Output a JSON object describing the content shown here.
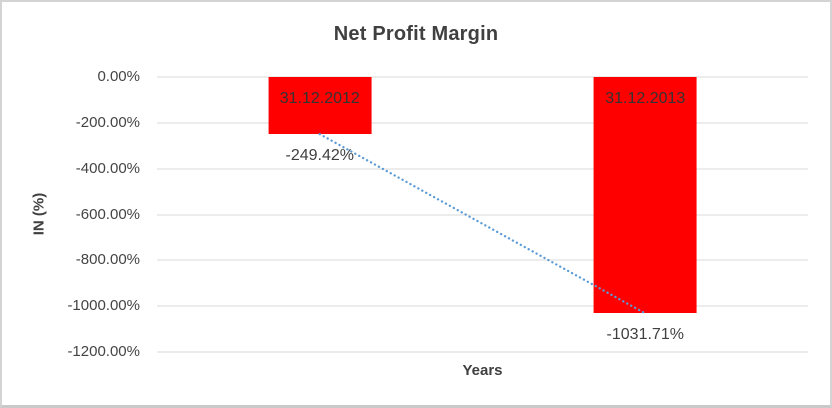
{
  "chart_data": {
    "type": "bar",
    "title": "Net Profit Margin",
    "xlabel": "Years",
    "ylabel": "IN (%)",
    "categories": [
      "31.12.2012",
      "31.12.2013"
    ],
    "values": [
      -249.42,
      -1031.71
    ],
    "value_labels": [
      "-249.42%",
      "-1031.71%"
    ],
    "ylim": [
      -1200,
      0
    ],
    "y_ticks": [
      "0.00%",
      "-200.00%",
      "-400.00%",
      "-600.00%",
      "-800.00%",
      "-1000.00%",
      "-1200.00%"
    ],
    "y_tick_values": [
      0,
      -200,
      -400,
      -600,
      -800,
      -1000,
      -1200
    ],
    "grid": true,
    "legend": "none",
    "bar_color": "#FF0000",
    "bar_label_color": "#333333",
    "gridline_color": "#D9D9D9",
    "text_color": "#404040",
    "trendline": {
      "type": "linear",
      "style": "dotted",
      "color": "#5B9BD5",
      "points": [
        [
          0,
          -249.42
        ],
        [
          1,
          -1031.71
        ]
      ]
    }
  }
}
